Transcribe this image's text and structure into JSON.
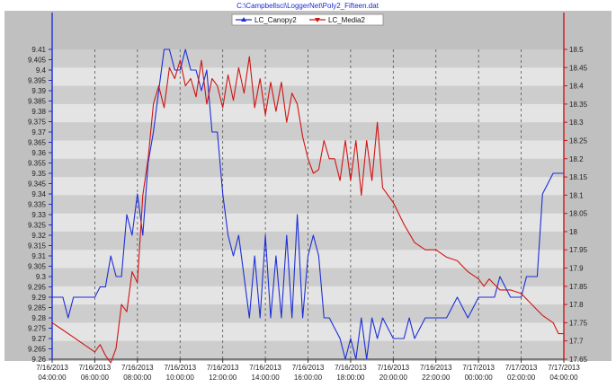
{
  "chart_data": {
    "type": "line",
    "title": "C:\\Campbellsci\\LoggerNet\\Poly2_Fifteen.dat",
    "x_labels": [
      [
        "7/16/2013",
        "04:00:00"
      ],
      [
        "7/16/2013",
        "06:00:00"
      ],
      [
        "7/16/2013",
        "08:00:00"
      ],
      [
        "7/16/2013",
        "10:00:00"
      ],
      [
        "7/16/2013",
        "12:00:00"
      ],
      [
        "7/16/2013",
        "14:00:00"
      ],
      [
        "7/16/2013",
        "16:00:00"
      ],
      [
        "7/16/2013",
        "18:00:00"
      ],
      [
        "7/16/2013",
        "20:00:00"
      ],
      [
        "7/16/2013",
        "22:00:00"
      ],
      [
        "7/17/2013",
        "00:00:00"
      ],
      [
        "7/17/2013",
        "02:00:00"
      ],
      [
        "7/17/2013",
        "04:00:00"
      ]
    ],
    "x_range": [
      "2013-07-16T04:00",
      "2013-07-17T04:00"
    ],
    "y_left": {
      "min": 9.26,
      "max": 9.41,
      "step": 0.005,
      "ticks": [
        "9.41",
        "9.405",
        "9.4",
        "9.395",
        "9.39",
        "9.385",
        "9.38",
        "9.375",
        "9.37",
        "9.365",
        "9.36",
        "9.355",
        "9.35",
        "9.345",
        "9.34",
        "9.335",
        "9.33",
        "9.325",
        "9.32",
        "9.315",
        "9.31",
        "9.305",
        "9.3",
        "9.295",
        "9.29",
        "9.285",
        "9.28",
        "9.275",
        "9.27",
        "9.265",
        "9.26"
      ]
    },
    "y_right": {
      "min": 17.65,
      "max": 18.5,
      "step": 0.05,
      "ticks": [
        "18.5",
        "18.45",
        "18.4",
        "18.35",
        "18.3",
        "18.25",
        "18.2",
        "18.15",
        "18.1",
        "18.05",
        "18",
        "17.95",
        "17.9",
        "17.85",
        "17.8",
        "17.75",
        "17.7",
        "17.65"
      ]
    },
    "legend_position": "top",
    "grid": "vertical dashed at labels, alternating horizontal bands",
    "colors": {
      "canopy": "#1c2fd6",
      "media": "#d11414",
      "left_axis": "#1c2fd6",
      "right_axis": "#d11414",
      "band_light": "#e4e4e4",
      "band_dark": "#cdcdcd",
      "outer": "#c0c0c0"
    },
    "series": [
      {
        "name": "LC_Canopy2",
        "axis": "left",
        "x": [
          "2013-07-16T04:00",
          "2013-07-16T04:30",
          "2013-07-16T04:45",
          "2013-07-16T05:00",
          "2013-07-16T05:30",
          "2013-07-16T06:00",
          "2013-07-16T06:15",
          "2013-07-16T06:30",
          "2013-07-16T06:45",
          "2013-07-16T07:00",
          "2013-07-16T07:15",
          "2013-07-16T07:30",
          "2013-07-16T07:45",
          "2013-07-16T08:00",
          "2013-07-16T08:15",
          "2013-07-16T08:30",
          "2013-07-16T08:45",
          "2013-07-16T09:00",
          "2013-07-16T09:15",
          "2013-07-16T09:30",
          "2013-07-16T09:45",
          "2013-07-16T10:00",
          "2013-07-16T10:15",
          "2013-07-16T10:30",
          "2013-07-16T10:45",
          "2013-07-16T11:00",
          "2013-07-16T11:15",
          "2013-07-16T11:30",
          "2013-07-16T11:45",
          "2013-07-16T12:00",
          "2013-07-16T12:15",
          "2013-07-16T12:30",
          "2013-07-16T12:45",
          "2013-07-16T13:00",
          "2013-07-16T13:15",
          "2013-07-16T13:30",
          "2013-07-16T13:45",
          "2013-07-16T14:00",
          "2013-07-16T14:15",
          "2013-07-16T14:30",
          "2013-07-16T14:45",
          "2013-07-16T15:00",
          "2013-07-16T15:15",
          "2013-07-16T15:30",
          "2013-07-16T15:45",
          "2013-07-16T16:00",
          "2013-07-16T16:15",
          "2013-07-16T16:30",
          "2013-07-16T16:45",
          "2013-07-16T17:00",
          "2013-07-16T17:15",
          "2013-07-16T17:30",
          "2013-07-16T17:45",
          "2013-07-16T18:00",
          "2013-07-16T18:15",
          "2013-07-16T18:30",
          "2013-07-16T18:45",
          "2013-07-16T19:00",
          "2013-07-16T19:15",
          "2013-07-16T19:30",
          "2013-07-16T20:00",
          "2013-07-16T20:30",
          "2013-07-16T20:45",
          "2013-07-16T21:00",
          "2013-07-16T21:30",
          "2013-07-16T22:00",
          "2013-07-16T22:15",
          "2013-07-16T22:30",
          "2013-07-16T23:00",
          "2013-07-16T23:30",
          "2013-07-17T00:00",
          "2013-07-17T00:15",
          "2013-07-17T00:30",
          "2013-07-17T00:45",
          "2013-07-17T01:00",
          "2013-07-17T01:30",
          "2013-07-17T02:00",
          "2013-07-17T02:15",
          "2013-07-17T02:30",
          "2013-07-17T02:45",
          "2013-07-17T03:00",
          "2013-07-17T03:30",
          "2013-07-17T04:00"
        ],
        "y": [
          9.29,
          9.29,
          9.28,
          9.29,
          9.29,
          9.29,
          9.295,
          9.295,
          9.31,
          9.3,
          9.3,
          9.33,
          9.32,
          9.34,
          9.32,
          9.355,
          9.37,
          9.39,
          9.41,
          9.41,
          9.4,
          9.4,
          9.41,
          9.4,
          9.4,
          9.39,
          9.4,
          9.37,
          9.37,
          9.34,
          9.32,
          9.31,
          9.32,
          9.3,
          9.28,
          9.31,
          9.28,
          9.32,
          9.28,
          9.31,
          9.28,
          9.32,
          9.28,
          9.33,
          9.28,
          9.31,
          9.32,
          9.31,
          9.28,
          9.28,
          9.275,
          9.27,
          9.26,
          9.27,
          9.26,
          9.28,
          9.26,
          9.28,
          9.27,
          9.28,
          9.27,
          9.27,
          9.28,
          9.27,
          9.28,
          9.28,
          9.28,
          9.28,
          9.29,
          9.28,
          9.29,
          9.29,
          9.29,
          9.29,
          9.3,
          9.29,
          9.29,
          9.3,
          9.3,
          9.3,
          9.34,
          9.35,
          9.35
        ]
      },
      {
        "name": "LC_Media2",
        "axis": "right",
        "x": [
          "2013-07-16T04:00",
          "2013-07-16T04:30",
          "2013-07-16T05:00",
          "2013-07-16T05:30",
          "2013-07-16T06:00",
          "2013-07-16T06:15",
          "2013-07-16T06:30",
          "2013-07-16T06:45",
          "2013-07-16T07:00",
          "2013-07-16T07:15",
          "2013-07-16T07:30",
          "2013-07-16T07:45",
          "2013-07-16T08:00",
          "2013-07-16T08:15",
          "2013-07-16T08:30",
          "2013-07-16T08:45",
          "2013-07-16T09:00",
          "2013-07-16T09:15",
          "2013-07-16T09:30",
          "2013-07-16T09:45",
          "2013-07-16T10:00",
          "2013-07-16T10:15",
          "2013-07-16T10:30",
          "2013-07-16T10:45",
          "2013-07-16T11:00",
          "2013-07-16T11:15",
          "2013-07-16T11:30",
          "2013-07-16T11:45",
          "2013-07-16T12:00",
          "2013-07-16T12:15",
          "2013-07-16T12:30",
          "2013-07-16T12:45",
          "2013-07-16T13:00",
          "2013-07-16T13:15",
          "2013-07-16T13:30",
          "2013-07-16T13:45",
          "2013-07-16T14:00",
          "2013-07-16T14:15",
          "2013-07-16T14:30",
          "2013-07-16T14:45",
          "2013-07-16T15:00",
          "2013-07-16T15:15",
          "2013-07-16T15:30",
          "2013-07-16T15:45",
          "2013-07-16T16:00",
          "2013-07-16T16:15",
          "2013-07-16T16:30",
          "2013-07-16T16:45",
          "2013-07-16T17:00",
          "2013-07-16T17:15",
          "2013-07-16T17:30",
          "2013-07-16T17:45",
          "2013-07-16T18:00",
          "2013-07-16T18:15",
          "2013-07-16T18:30",
          "2013-07-16T18:45",
          "2013-07-16T19:00",
          "2013-07-16T19:15",
          "2013-07-16T19:30",
          "2013-07-16T20:00",
          "2013-07-16T20:30",
          "2013-07-16T21:00",
          "2013-07-16T21:30",
          "2013-07-16T22:00",
          "2013-07-16T22:30",
          "2013-07-16T23:00",
          "2013-07-16T23:30",
          "2013-07-17T00:00",
          "2013-07-17T00:15",
          "2013-07-17T00:30",
          "2013-07-17T01:00",
          "2013-07-17T01:30",
          "2013-07-17T02:00",
          "2013-07-17T02:30",
          "2013-07-17T03:00",
          "2013-07-17T03:30",
          "2013-07-17T03:45",
          "2013-07-17T04:00"
        ],
        "y": [
          17.75,
          17.73,
          17.71,
          17.69,
          17.67,
          17.69,
          17.66,
          17.64,
          17.68,
          17.8,
          17.78,
          17.89,
          17.86,
          18.1,
          18.2,
          18.35,
          18.4,
          18.34,
          18.45,
          18.42,
          18.47,
          18.4,
          18.42,
          18.37,
          18.47,
          18.35,
          18.42,
          18.4,
          18.34,
          18.43,
          18.36,
          18.45,
          18.38,
          18.48,
          18.34,
          18.42,
          18.32,
          18.41,
          18.33,
          18.41,
          18.3,
          18.38,
          18.35,
          18.26,
          18.2,
          18.16,
          18.17,
          18.25,
          18.2,
          18.2,
          18.14,
          18.25,
          18.14,
          18.25,
          18.1,
          18.25,
          18.14,
          18.3,
          18.12,
          18.08,
          18.02,
          17.97,
          17.95,
          17.95,
          17.93,
          17.92,
          17.89,
          17.87,
          17.85,
          17.87,
          17.84,
          17.84,
          17.83,
          17.8,
          17.77,
          17.75,
          17.72,
          17.72
        ]
      }
    ]
  }
}
